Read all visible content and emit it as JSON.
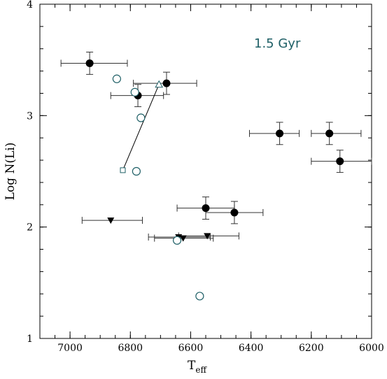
{
  "chart_data": {
    "type": "scatter",
    "title": "",
    "annotation": "1.5 Gyr",
    "xlabel": "T",
    "xlabel_sub": "eff",
    "ylabel": "Log N(Li)",
    "xlim": [
      7100,
      6000
    ],
    "ylim": [
      1,
      4
    ],
    "x_ticks": [
      "7000",
      "6800",
      "6600",
      "6400",
      "6200",
      "6000"
    ],
    "y_ticks": [
      "1",
      "2",
      "3",
      "4"
    ],
    "x_tick_values": [
      7000,
      6800,
      6600,
      6400,
      6200,
      6000
    ],
    "y_tick_values": [
      1,
      2,
      3,
      4
    ],
    "x_minor_step": 50,
    "y_minor_step": 0.2,
    "colors": {
      "accent": "#1e5f66",
      "marker": "#000000"
    },
    "series": [
      {
        "marker": "filled-circle",
        "points": [
          {
            "x": 6935,
            "y": 3.47,
            "xerr": [
              6810,
              7030
            ],
            "yerr": [
              3.37,
              3.57
            ]
          },
          {
            "x": 6775,
            "y": 3.18,
            "xerr": [
              6690,
              6865
            ],
            "yerr": [
              3.08,
              3.28
            ]
          },
          {
            "x": 6680,
            "y": 3.29,
            "xerr": [
              6580,
              6790
            ],
            "yerr": [
              3.19,
              3.39
            ]
          },
          {
            "x": 6305,
            "y": 2.84,
            "xerr": [
              6240,
              6405
            ],
            "yerr": [
              2.74,
              2.94
            ]
          },
          {
            "x": 6140,
            "y": 2.84,
            "xerr": [
              6035,
              6200
            ],
            "yerr": [
              2.74,
              2.94
            ]
          },
          {
            "x": 6105,
            "y": 2.59,
            "xerr": [
              6000,
              6200
            ],
            "yerr": [
              2.49,
              2.69
            ]
          },
          {
            "x": 6550,
            "y": 2.17,
            "xerr": [
              6455,
              6645
            ],
            "yerr": [
              2.07,
              2.27
            ]
          },
          {
            "x": 6455,
            "y": 2.13,
            "xerr": [
              6360,
              6550
            ],
            "yerr": [
              2.03,
              2.23
            ]
          }
        ]
      },
      {
        "marker": "filled-triangle-down",
        "points": [
          {
            "x": 6865,
            "y": 2.06,
            "xerr": [
              6760,
              6960
            ]
          },
          {
            "x": 6640,
            "y": 1.91,
            "xerr": [
              6535,
              6740
            ]
          },
          {
            "x": 6625,
            "y": 1.9,
            "xerr": [
              6525,
              6720
            ]
          },
          {
            "x": 6545,
            "y": 1.92,
            "xerr": [
              6440,
              6640
            ]
          }
        ]
      },
      {
        "marker": "open-circle",
        "points": [
          {
            "x": 6845,
            "y": 3.33
          },
          {
            "x": 6785,
            "y": 3.21
          },
          {
            "x": 6765,
            "y": 2.98
          },
          {
            "x": 6780,
            "y": 2.5
          },
          {
            "x": 6645,
            "y": 1.88
          },
          {
            "x": 6570,
            "y": 1.38
          }
        ]
      },
      {
        "marker": "line-track",
        "points": [
          {
            "x": 6825,
            "y": 2.51,
            "marker": "open-square"
          },
          {
            "x": 6705,
            "y": 3.28,
            "marker": "open-triangle"
          }
        ]
      }
    ]
  }
}
